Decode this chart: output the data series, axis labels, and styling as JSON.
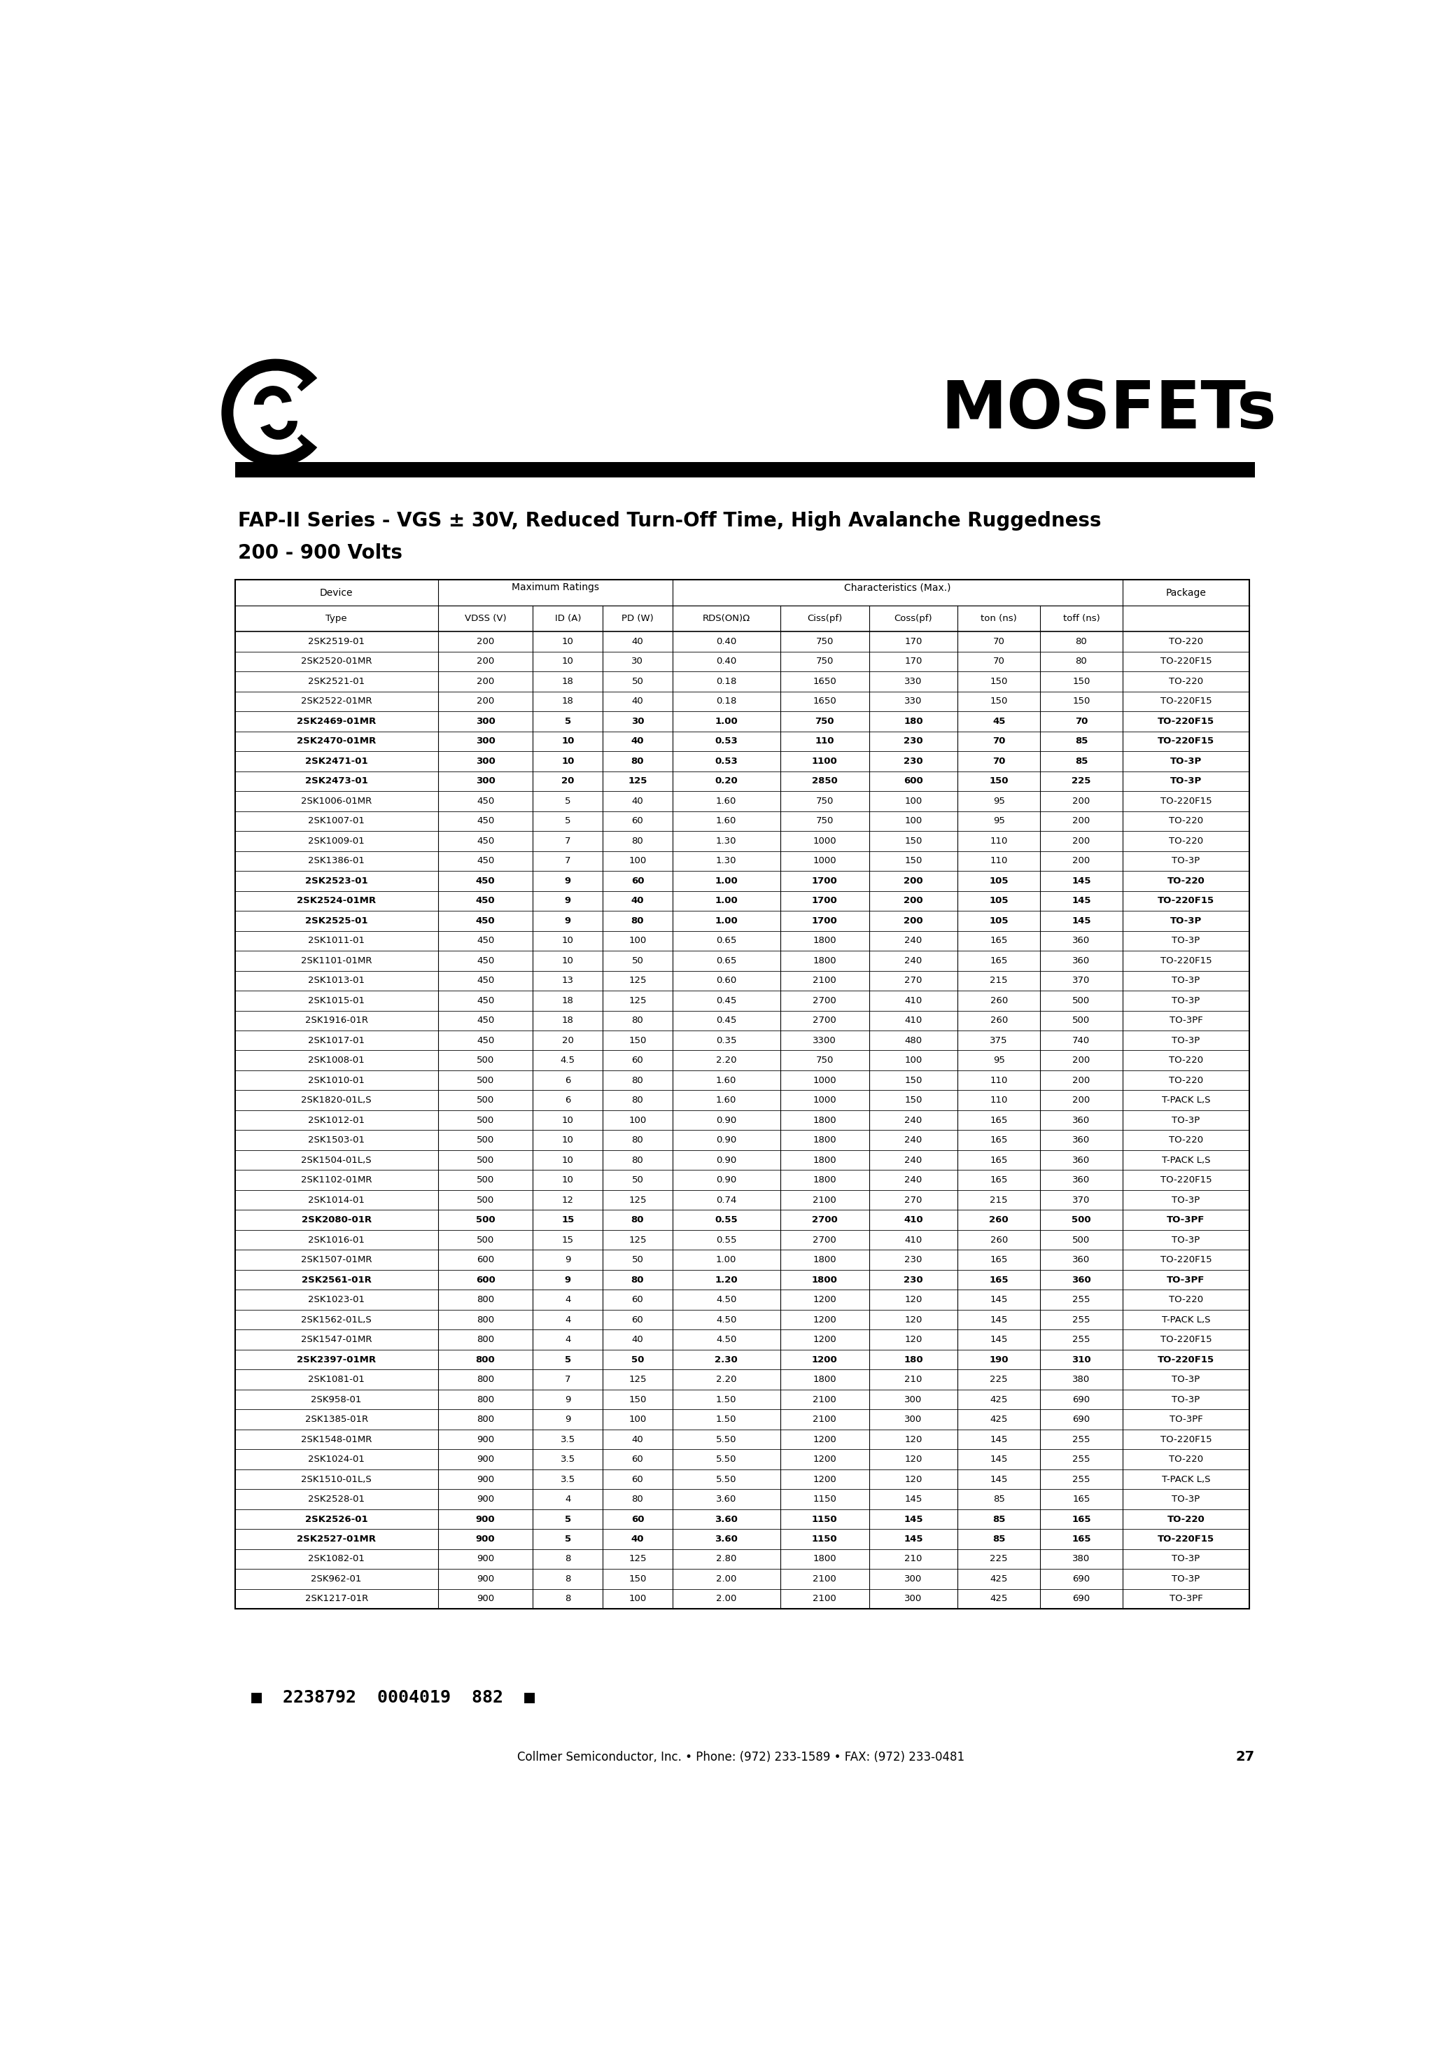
{
  "title_line1": "FAP-II Series - VGS ± 30V, Reduced Turn-Off Time, High Avalanche Ruggedness",
  "title_line2": "200 - 900 Volts",
  "mosfets_text": "MOSFETs",
  "col_headers_row1": [
    "Device",
    "Maximum Ratings",
    "Characteristics (Max.)",
    "Package"
  ],
  "col_headers_row2": [
    "Type",
    "VDSS (V)",
    "ID (A)",
    "PD (W)",
    "RDS(ON) Ω",
    "Ciss(pf)",
    "Coss(pf)",
    "ton (ns)",
    "toff (ns)",
    ""
  ],
  "rows": [
    [
      "2SK2519-01",
      "200",
      "10",
      "40",
      "0.40",
      "750",
      "170",
      "70",
      "80",
      "TO-220"
    ],
    [
      "2SK2520-01MR",
      "200",
      "10",
      "30",
      "0.40",
      "750",
      "170",
      "70",
      "80",
      "TO-220F15"
    ],
    [
      "2SK2521-01",
      "200",
      "18",
      "50",
      "0.18",
      "1650",
      "330",
      "150",
      "150",
      "TO-220"
    ],
    [
      "2SK2522-01MR",
      "200",
      "18",
      "40",
      "0.18",
      "1650",
      "330",
      "150",
      "150",
      "TO-220F15"
    ],
    [
      "2SK2469-01MR",
      "300",
      "5",
      "30",
      "1.00",
      "750",
      "180",
      "45",
      "70",
      "TO-220F15"
    ],
    [
      "2SK2470-01MR",
      "300",
      "10",
      "40",
      "0.53",
      "110",
      "230",
      "70",
      "85",
      "TO-220F15"
    ],
    [
      "2SK2471-01",
      "300",
      "10",
      "80",
      "0.53",
      "1100",
      "230",
      "70",
      "85",
      "TO-3P"
    ],
    [
      "2SK2473-01",
      "300",
      "20",
      "125",
      "0.20",
      "2850",
      "600",
      "150",
      "225",
      "TO-3P"
    ],
    [
      "2SK1006-01MR",
      "450",
      "5",
      "40",
      "1.60",
      "750",
      "100",
      "95",
      "200",
      "TO-220F15"
    ],
    [
      "2SK1007-01",
      "450",
      "5",
      "60",
      "1.60",
      "750",
      "100",
      "95",
      "200",
      "TO-220"
    ],
    [
      "2SK1009-01",
      "450",
      "7",
      "80",
      "1.30",
      "1000",
      "150",
      "110",
      "200",
      "TO-220"
    ],
    [
      "2SK1386-01",
      "450",
      "7",
      "100",
      "1.30",
      "1000",
      "150",
      "110",
      "200",
      "TO-3P"
    ],
    [
      "2SK2523-01",
      "450",
      "9",
      "60",
      "1.00",
      "1700",
      "200",
      "105",
      "145",
      "TO-220"
    ],
    [
      "2SK2524-01MR",
      "450",
      "9",
      "40",
      "1.00",
      "1700",
      "200",
      "105",
      "145",
      "TO-220F15"
    ],
    [
      "2SK2525-01",
      "450",
      "9",
      "80",
      "1.00",
      "1700",
      "200",
      "105",
      "145",
      "TO-3P"
    ],
    [
      "2SK1011-01",
      "450",
      "10",
      "100",
      "0.65",
      "1800",
      "240",
      "165",
      "360",
      "TO-3P"
    ],
    [
      "2SK1101-01MR",
      "450",
      "10",
      "50",
      "0.65",
      "1800",
      "240",
      "165",
      "360",
      "TO-220F15"
    ],
    [
      "2SK1013-01",
      "450",
      "13",
      "125",
      "0.60",
      "2100",
      "270",
      "215",
      "370",
      "TO-3P"
    ],
    [
      "2SK1015-01",
      "450",
      "18",
      "125",
      "0.45",
      "2700",
      "410",
      "260",
      "500",
      "TO-3P"
    ],
    [
      "2SK1916-01R",
      "450",
      "18",
      "80",
      "0.45",
      "2700",
      "410",
      "260",
      "500",
      "TO-3PF"
    ],
    [
      "2SK1017-01",
      "450",
      "20",
      "150",
      "0.35",
      "3300",
      "480",
      "375",
      "740",
      "TO-3P"
    ],
    [
      "2SK1008-01",
      "500",
      "4.5",
      "60",
      "2.20",
      "750",
      "100",
      "95",
      "200",
      "TO-220"
    ],
    [
      "2SK1010-01",
      "500",
      "6",
      "80",
      "1.60",
      "1000",
      "150",
      "110",
      "200",
      "TO-220"
    ],
    [
      "2SK1820-01L,S",
      "500",
      "6",
      "80",
      "1.60",
      "1000",
      "150",
      "110",
      "200",
      "T-PACK L,S"
    ],
    [
      "2SK1012-01",
      "500",
      "10",
      "100",
      "0.90",
      "1800",
      "240",
      "165",
      "360",
      "TO-3P"
    ],
    [
      "2SK1503-01",
      "500",
      "10",
      "80",
      "0.90",
      "1800",
      "240",
      "165",
      "360",
      "TO-220"
    ],
    [
      "2SK1504-01L,S",
      "500",
      "10",
      "80",
      "0.90",
      "1800",
      "240",
      "165",
      "360",
      "T-PACK L,S"
    ],
    [
      "2SK1102-01MR",
      "500",
      "10",
      "50",
      "0.90",
      "1800",
      "240",
      "165",
      "360",
      "TO-220F15"
    ],
    [
      "2SK1014-01",
      "500",
      "12",
      "125",
      "0.74",
      "2100",
      "270",
      "215",
      "370",
      "TO-3P"
    ],
    [
      "2SK2080-01R",
      "500",
      "15",
      "80",
      "0.55",
      "2700",
      "410",
      "260",
      "500",
      "TO-3PF"
    ],
    [
      "2SK1016-01",
      "500",
      "15",
      "125",
      "0.55",
      "2700",
      "410",
      "260",
      "500",
      "TO-3P"
    ],
    [
      "2SK1507-01MR",
      "600",
      "9",
      "50",
      "1.00",
      "1800",
      "230",
      "165",
      "360",
      "TO-220F15"
    ],
    [
      "2SK2561-01R",
      "600",
      "9",
      "80",
      "1.20",
      "1800",
      "230",
      "165",
      "360",
      "TO-3PF"
    ],
    [
      "2SK1023-01",
      "800",
      "4",
      "60",
      "4.50",
      "1200",
      "120",
      "145",
      "255",
      "TO-220"
    ],
    [
      "2SK1562-01L,S",
      "800",
      "4",
      "60",
      "4.50",
      "1200",
      "120",
      "145",
      "255",
      "T-PACK L,S"
    ],
    [
      "2SK1547-01MR",
      "800",
      "4",
      "40",
      "4.50",
      "1200",
      "120",
      "145",
      "255",
      "TO-220F15"
    ],
    [
      "2SK2397-01MR",
      "800",
      "5",
      "50",
      "2.30",
      "1200",
      "180",
      "190",
      "310",
      "TO-220F15"
    ],
    [
      "2SK1081-01",
      "800",
      "7",
      "125",
      "2.20",
      "1800",
      "210",
      "225",
      "380",
      "TO-3P"
    ],
    [
      "2SK958-01",
      "800",
      "9",
      "150",
      "1.50",
      "2100",
      "300",
      "425",
      "690",
      "TO-3P"
    ],
    [
      "2SK1385-01R",
      "800",
      "9",
      "100",
      "1.50",
      "2100",
      "300",
      "425",
      "690",
      "TO-3PF"
    ],
    [
      "2SK1548-01MR",
      "900",
      "3.5",
      "40",
      "5.50",
      "1200",
      "120",
      "145",
      "255",
      "TO-220F15"
    ],
    [
      "2SK1024-01",
      "900",
      "3.5",
      "60",
      "5.50",
      "1200",
      "120",
      "145",
      "255",
      "TO-220"
    ],
    [
      "2SK1510-01L,S",
      "900",
      "3.5",
      "60",
      "5.50",
      "1200",
      "120",
      "145",
      "255",
      "T-PACK L,S"
    ],
    [
      "2SK2528-01",
      "900",
      "4",
      "80",
      "3.60",
      "1150",
      "145",
      "85",
      "165",
      "TO-3P"
    ],
    [
      "2SK2526-01",
      "900",
      "5",
      "60",
      "3.60",
      "1150",
      "145",
      "85",
      "165",
      "TO-220"
    ],
    [
      "2SK2527-01MR",
      "900",
      "5",
      "40",
      "3.60",
      "1150",
      "145",
      "85",
      "165",
      "TO-220F15"
    ],
    [
      "2SK1082-01",
      "900",
      "8",
      "125",
      "2.80",
      "1800",
      "210",
      "225",
      "380",
      "TO-3P"
    ],
    [
      "2SK962-01",
      "900",
      "8",
      "150",
      "2.00",
      "2100",
      "300",
      "425",
      "690",
      "TO-3P"
    ],
    [
      "2SK1217-01R",
      "900",
      "8",
      "100",
      "2.00",
      "2100",
      "300",
      "425",
      "690",
      "TO-3PF"
    ]
  ],
  "bold_rows": [
    "2SK2469-01MR",
    "2SK2470-01MR",
    "2SK2471-01",
    "2SK2473-01",
    "2SK2523-01",
    "2SK2524-01MR",
    "2SK2525-01",
    "2SK2080-01R",
    "2SK2561-01R",
    "2SK2397-01MR",
    "2SK2526-01",
    "2SK2527-01MR"
  ],
  "footer_barcode": "■  2238792  0004019  882  ■",
  "footer_text": "Collmer Semiconductor, Inc. • Phone: (972) 233-1589 • FAX: (972) 233-0481",
  "page_number": "27",
  "bg_color": "#ffffff"
}
